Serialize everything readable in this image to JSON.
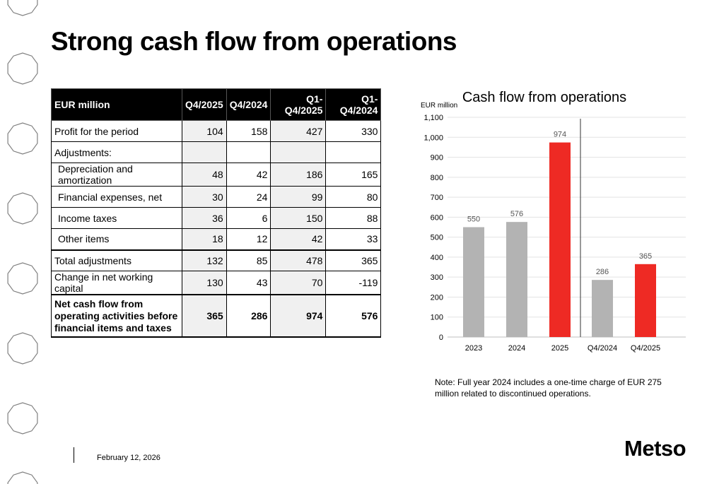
{
  "page": {
    "title": "Strong cash flow from operations",
    "note": "Note: Full year 2024 includes a one-time charge of EUR 275 million related to discontinued operations.",
    "date": "February 12, 2026",
    "logo": "Metso"
  },
  "table": {
    "headers": [
      "EUR million",
      "Q4/2025",
      "Q4/2024",
      "Q1-Q4/2025",
      "Q1-Q4/2024"
    ],
    "rows": [
      {
        "label": "Profit for the period",
        "values": [
          "104",
          "158",
          "427",
          "330"
        ]
      },
      {
        "label": "Adjustments:",
        "values": [
          "",
          "",
          "",
          ""
        ]
      },
      {
        "label": "Depreciation and amortization",
        "values": [
          "48",
          "42",
          "186",
          "165"
        ]
      },
      {
        "label": "Financial expenses, net",
        "values": [
          "30",
          "24",
          "99",
          "80"
        ]
      },
      {
        "label": "Income taxes",
        "values": [
          "36",
          "6",
          "150",
          "88"
        ]
      },
      {
        "label": "Other items",
        "values": [
          "18",
          "12",
          "42",
          "33"
        ]
      },
      {
        "label": "Total adjustments",
        "values": [
          "132",
          "85",
          "478",
          "365"
        ]
      },
      {
        "label": "Change in net working capital",
        "values": [
          "130",
          "43",
          "70",
          "-119"
        ]
      },
      {
        "label": "Net cash flow from operating activities before financial items and taxes",
        "values": [
          "365",
          "286",
          "974",
          "576"
        ]
      }
    ]
  },
  "chart_data": {
    "type": "bar",
    "title": "Cash flow from operations",
    "ylabel": "EUR million",
    "categories": [
      "2023",
      "2024",
      "2025",
      "Q4/2024",
      "Q4/2025"
    ],
    "values": [
      550,
      576,
      974,
      286,
      365
    ],
    "bar_colors": [
      "#b3b3b3",
      "#b3b3b3",
      "#ee2a24",
      "#b3b3b3",
      "#ee2a24"
    ],
    "ylim": [
      0,
      1100
    ],
    "yticks": [
      "0",
      "100",
      "200",
      "300",
      "400",
      "500",
      "600",
      "700",
      "800",
      "900",
      "1,000",
      "1,100"
    ],
    "grid": true
  }
}
